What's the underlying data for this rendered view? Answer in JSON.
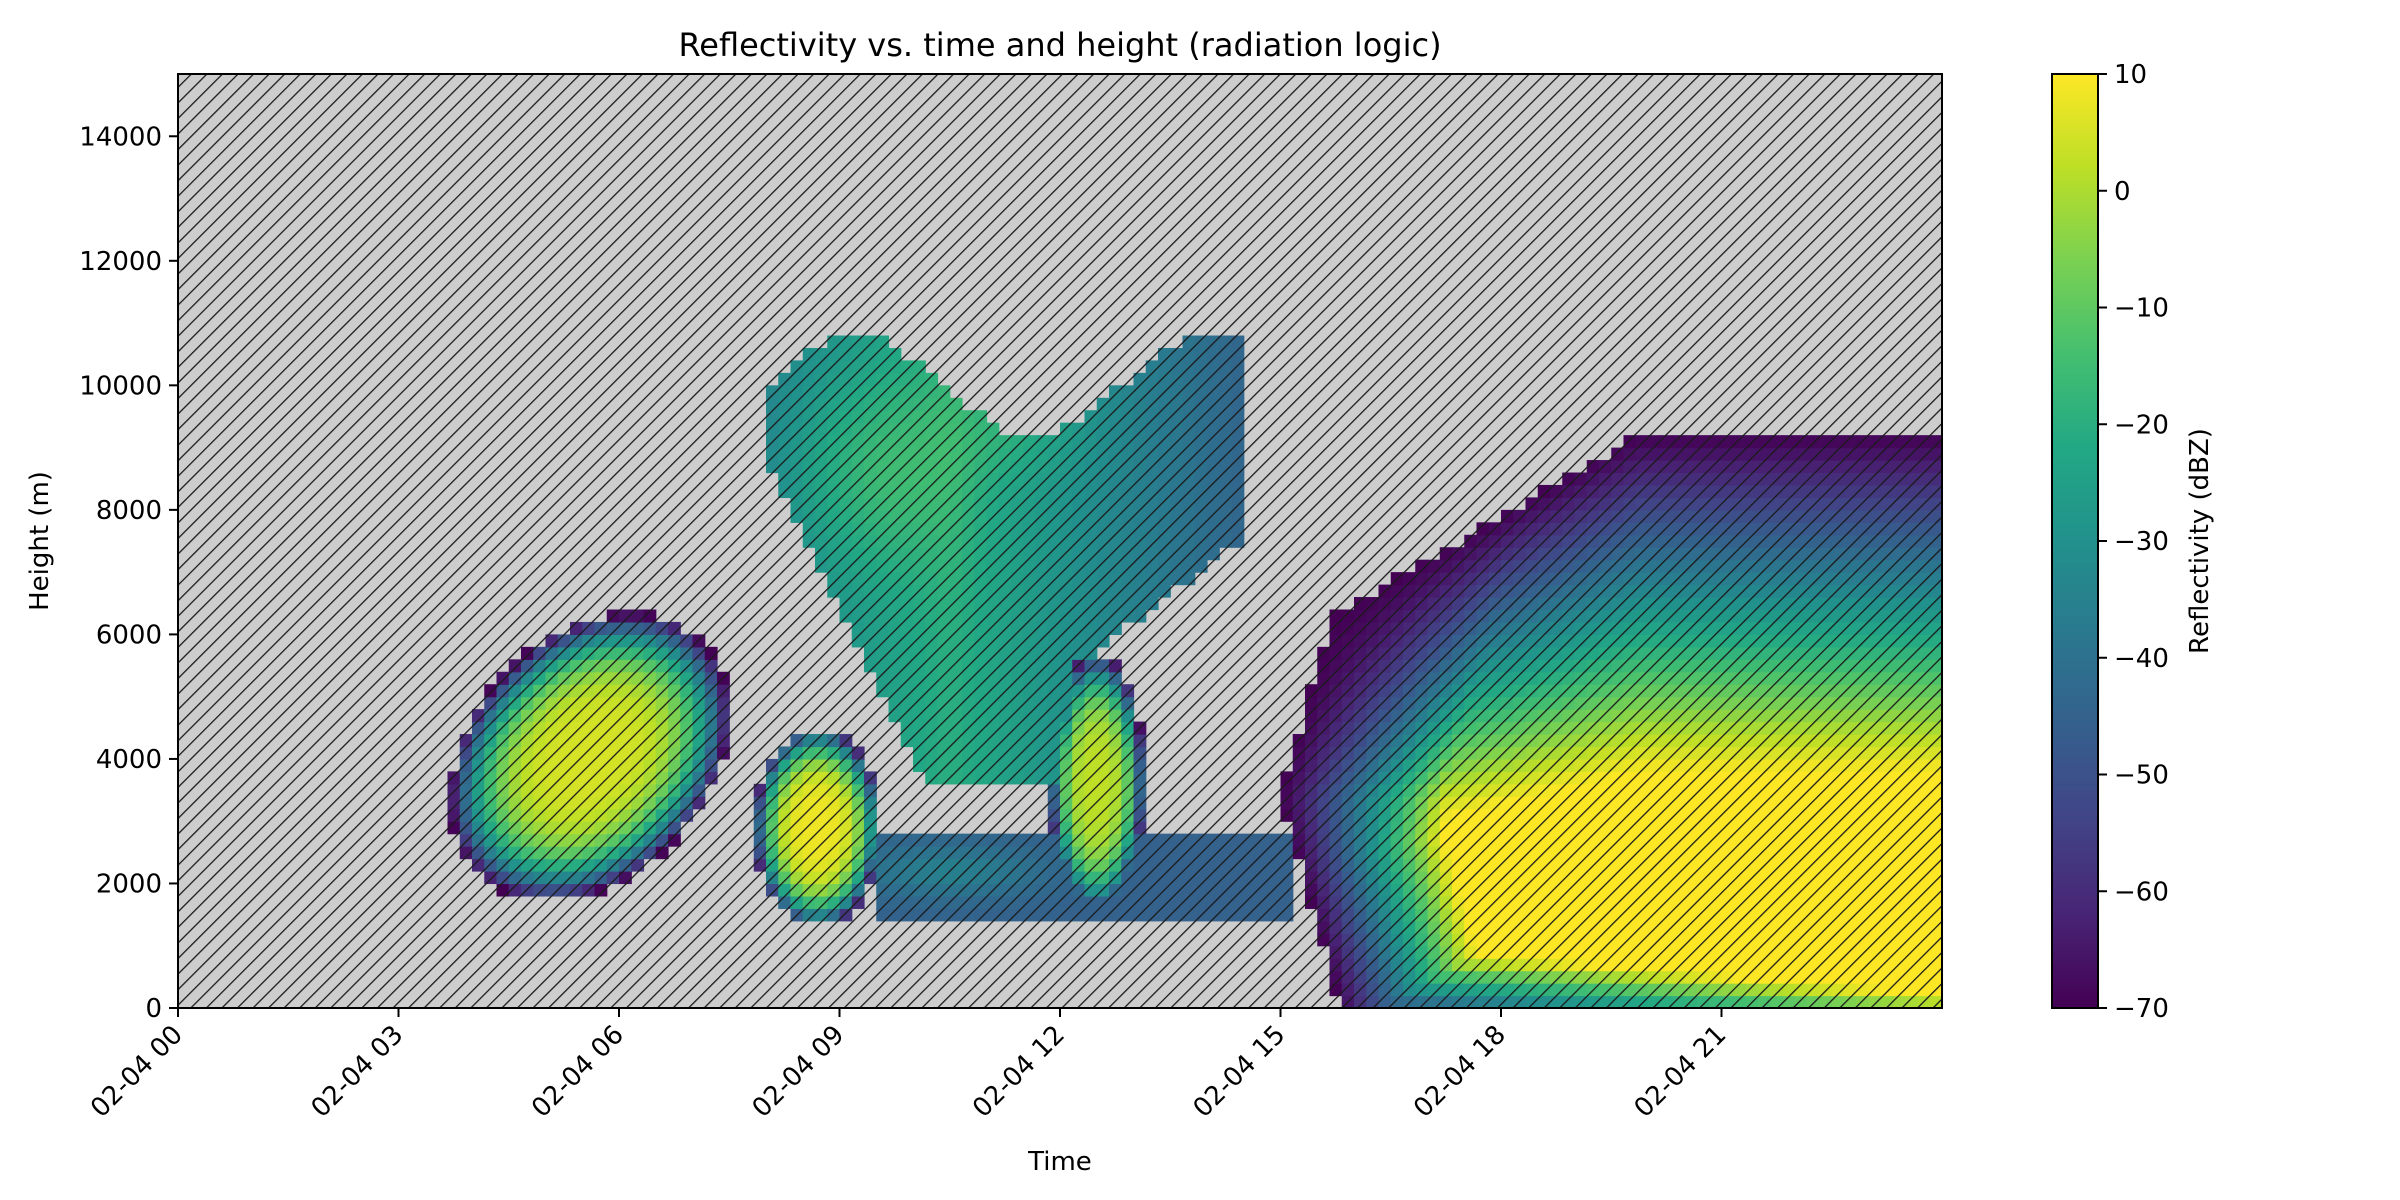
{
  "chart_data": {
    "type": "heatmap",
    "title": "Reflectivity vs. time and height (radiation logic)",
    "xlabel": "Time",
    "ylabel": "Height (m)",
    "x_range": [
      "2022-02-04 00:00",
      "2022-02-04 24:00"
    ],
    "x_visible_start_hours": 0,
    "x_visible_end_hours": 24,
    "x_ticks": [
      "02-04 00",
      "02-04 03",
      "02-04 06",
      "02-04 09",
      "02-04 12",
      "02-04 15",
      "02-04 18",
      "02-04 21"
    ],
    "x_tick_hours": [
      0,
      3,
      6,
      9,
      12,
      15,
      18,
      21
    ],
    "ylim": [
      0,
      15000
    ],
    "y_ticks": [
      0,
      2000,
      4000,
      6000,
      8000,
      10000,
      12000,
      14000
    ],
    "colorbar": {
      "label": "Reflectivity (dBZ)",
      "range": [
        -70,
        10
      ],
      "ticks": [
        10,
        0,
        -10,
        -20,
        -30,
        -40,
        -50,
        -60,
        -70
      ],
      "colormap": "viridis"
    },
    "background": "hatched gray (no data)",
    "colors": {
      "nodata": "#cdcdcd",
      "hatch": "#1a1a1a",
      "viridis": [
        "#440154",
        "#482475",
        "#414487",
        "#355f8d",
        "#2a788e",
        "#21918c",
        "#22a884",
        "#44bf70",
        "#7ad151",
        "#bddf26",
        "#fde725"
      ]
    },
    "echo_regions_approx": [
      {
        "t_hours": [
          3.1,
          7.8
        ],
        "height_m": [
          1900,
          7400
        ],
        "peak_dBZ": 5
      },
      {
        "t_hours": [
          7.8,
          9.7
        ],
        "height_m": [
          1500,
          4600
        ],
        "peak_dBZ": 8
      },
      {
        "t_hours": [
          8.0,
          14.5
        ],
        "height_m": [
          3500,
          11000
        ],
        "peak_dBZ": -12
      },
      {
        "t_hours": [
          12.0,
          13.3
        ],
        "height_m": [
          1300,
          5500
        ],
        "peak_dBZ": 2
      },
      {
        "t_hours": [
          15.0,
          24.0
        ],
        "height_m": [
          0,
          9200
        ],
        "peak_dBZ": 10
      }
    ]
  }
}
